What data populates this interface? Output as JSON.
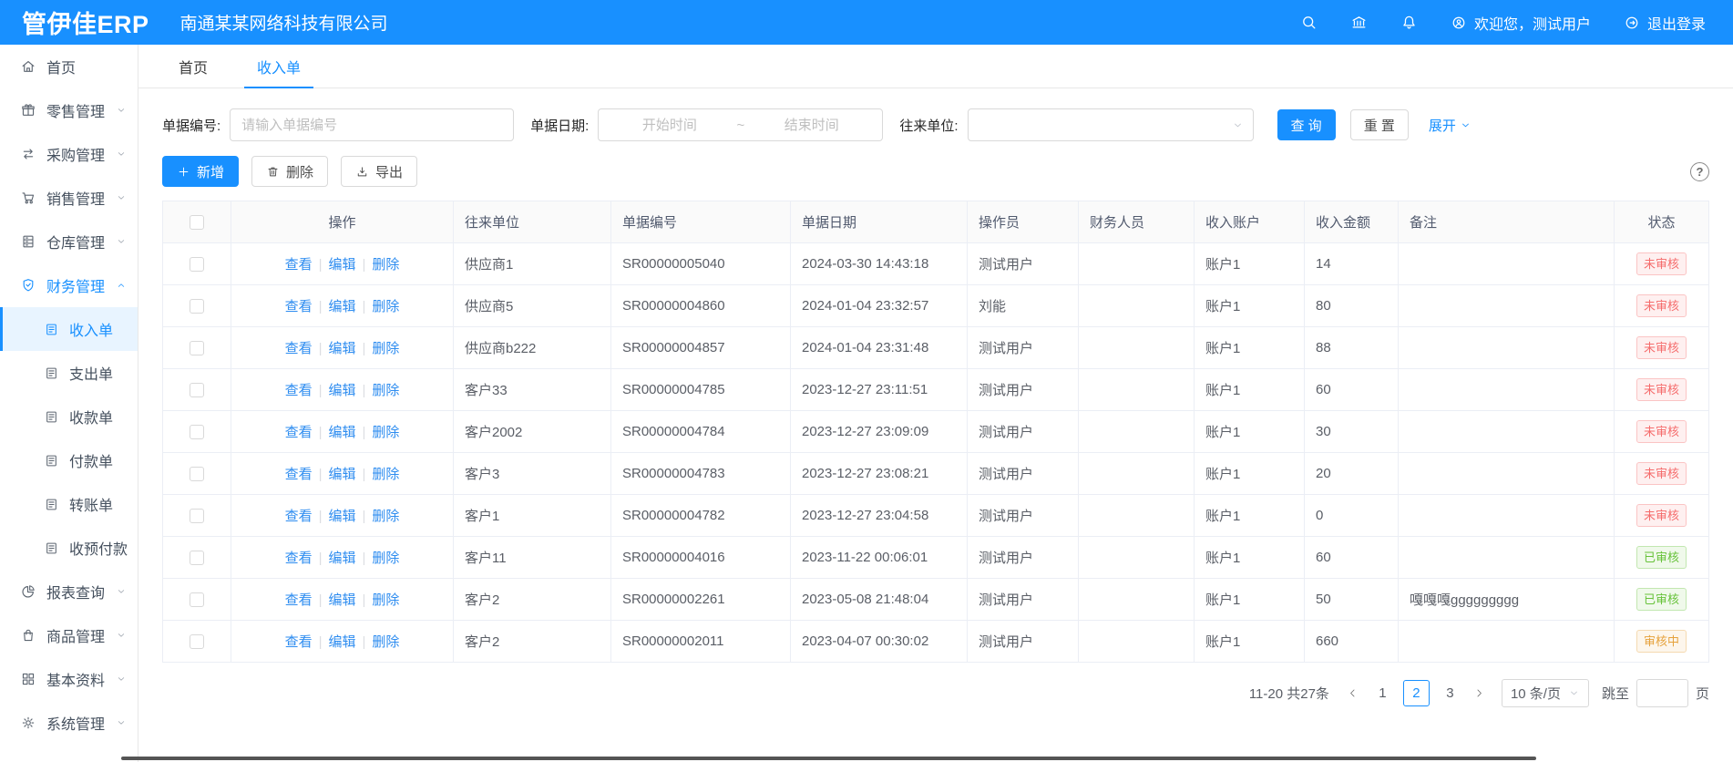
{
  "app": {
    "logo": "管伊佳ERP",
    "company": "南通某某网络科技有限公司",
    "welcome": "欢迎您，测试用户",
    "logout": "退出登录",
    "topbar_icons": [
      "search-icon",
      "bank-icon",
      "bell-icon",
      "user-circle-icon",
      "logout-icon"
    ]
  },
  "colors": {
    "primary": "#1890ff",
    "danger": "#f56c6c",
    "success": "#67c23a",
    "warning": "#e6a23c"
  },
  "tabs": [
    {
      "key": "home",
      "label": "首页",
      "active": false
    },
    {
      "key": "income-bill",
      "label": "收入单",
      "active": true
    }
  ],
  "sidebar": {
    "items": [
      {
        "key": "home",
        "label": "首页",
        "icon": "home-icon",
        "type": "top"
      },
      {
        "key": "retail",
        "label": "零售管理",
        "icon": "retail-icon",
        "type": "top",
        "chevron": "down"
      },
      {
        "key": "purchase",
        "label": "采购管理",
        "icon": "purchase-icon",
        "type": "top",
        "chevron": "down"
      },
      {
        "key": "sales",
        "label": "销售管理",
        "icon": "cart-icon",
        "type": "top",
        "chevron": "down"
      },
      {
        "key": "warehouse",
        "label": "仓库管理",
        "icon": "warehouse-icon",
        "type": "top",
        "chevron": "down"
      },
      {
        "key": "finance",
        "label": "财务管理",
        "icon": "finance-icon",
        "type": "top",
        "chevron": "up",
        "expanded": true
      },
      {
        "key": "income-bill",
        "label": "收入单",
        "icon": "doc-icon",
        "type": "sub",
        "active": true
      },
      {
        "key": "expense-bill",
        "label": "支出单",
        "icon": "doc-icon",
        "type": "sub"
      },
      {
        "key": "receipt-bill",
        "label": "收款单",
        "icon": "doc-icon",
        "type": "sub"
      },
      {
        "key": "payment-bill",
        "label": "付款单",
        "icon": "doc-icon",
        "type": "sub"
      },
      {
        "key": "transfer-bill",
        "label": "转账单",
        "icon": "doc-icon",
        "type": "sub"
      },
      {
        "key": "advance-bill",
        "label": "收预付款",
        "icon": "doc-icon",
        "type": "sub"
      },
      {
        "key": "report",
        "label": "报表查询",
        "icon": "report-icon",
        "type": "top",
        "chevron": "down"
      },
      {
        "key": "product",
        "label": "商品管理",
        "icon": "product-icon",
        "type": "top",
        "chevron": "down"
      },
      {
        "key": "basic",
        "label": "基本资料",
        "icon": "basic-icon",
        "type": "top",
        "chevron": "down"
      },
      {
        "key": "system",
        "label": "系统管理",
        "icon": "gear-icon",
        "type": "top",
        "chevron": "down"
      }
    ]
  },
  "filters": {
    "bill_no_label": "单据编号:",
    "bill_no_placeholder": "请输入单据编号",
    "date_label": "单据日期:",
    "date_start_placeholder": "开始时间",
    "date_separator": "~",
    "date_end_placeholder": "结束时间",
    "partner_label": "往来单位:",
    "search_button": "查 询",
    "reset_button": "重 置",
    "expand_link": "展开"
  },
  "toolbar": {
    "add": "新增",
    "delete": "删除",
    "export": "导出",
    "help": "?"
  },
  "table": {
    "columns": [
      "操作",
      "往来单位",
      "单据编号",
      "单据日期",
      "操作员",
      "财务人员",
      "收入账户",
      "收入金额",
      "备注",
      "状态"
    ],
    "actions": [
      "查看",
      "编辑",
      "删除"
    ],
    "rows": [
      {
        "partner": "供应商1",
        "bill_no": "SR00000005040",
        "date": "2024-03-30 14:43:18",
        "operator": "测试用户",
        "finance": "",
        "account": "账户1",
        "amount": "14",
        "remark": "",
        "status": "未审核",
        "status_type": "danger"
      },
      {
        "partner": "供应商5",
        "bill_no": "SR00000004860",
        "date": "2024-01-04 23:32:57",
        "operator": "刘能",
        "finance": "",
        "account": "账户1",
        "amount": "80",
        "remark": "",
        "status": "未审核",
        "status_type": "danger"
      },
      {
        "partner": "供应商b222",
        "bill_no": "SR00000004857",
        "date": "2024-01-04 23:31:48",
        "operator": "测试用户",
        "finance": "",
        "account": "账户1",
        "amount": "88",
        "remark": "",
        "status": "未审核",
        "status_type": "danger"
      },
      {
        "partner": "客户33",
        "bill_no": "SR00000004785",
        "date": "2023-12-27 23:11:51",
        "operator": "测试用户",
        "finance": "",
        "account": "账户1",
        "amount": "60",
        "remark": "",
        "status": "未审核",
        "status_type": "danger"
      },
      {
        "partner": "客户2002",
        "bill_no": "SR00000004784",
        "date": "2023-12-27 23:09:09",
        "operator": "测试用户",
        "finance": "",
        "account": "账户1",
        "amount": "30",
        "remark": "",
        "status": "未审核",
        "status_type": "danger"
      },
      {
        "partner": "客户3",
        "bill_no": "SR00000004783",
        "date": "2023-12-27 23:08:21",
        "operator": "测试用户",
        "finance": "",
        "account": "账户1",
        "amount": "20",
        "remark": "",
        "status": "未审核",
        "status_type": "danger"
      },
      {
        "partner": "客户1",
        "bill_no": "SR00000004782",
        "date": "2023-12-27 23:04:58",
        "operator": "测试用户",
        "finance": "",
        "account": "账户1",
        "amount": "0",
        "remark": "",
        "status": "未审核",
        "status_type": "danger"
      },
      {
        "partner": "客户11",
        "bill_no": "SR00000004016",
        "date": "2023-11-22 00:06:01",
        "operator": "测试用户",
        "finance": "",
        "account": "账户1",
        "amount": "60",
        "remark": "",
        "status": "已审核",
        "status_type": "success"
      },
      {
        "partner": "客户2",
        "bill_no": "SR00000002261",
        "date": "2023-05-08 21:48:04",
        "operator": "测试用户",
        "finance": "",
        "account": "账户1",
        "amount": "50",
        "remark": "嘎嘎嘎ggggggggg",
        "status": "已审核",
        "status_type": "success"
      },
      {
        "partner": "客户2",
        "bill_no": "SR00000002011",
        "date": "2023-04-07 00:30:02",
        "operator": "测试用户",
        "finance": "",
        "account": "账户1",
        "amount": "660",
        "remark": "",
        "status": "审核中",
        "status_type": "warning"
      }
    ]
  },
  "pagination": {
    "summary": "11-20 共27条",
    "pages": [
      "1",
      "2",
      "3"
    ],
    "current": "2",
    "page_size": "10 条/页",
    "jump_label": "跳至",
    "page_unit": "页"
  }
}
